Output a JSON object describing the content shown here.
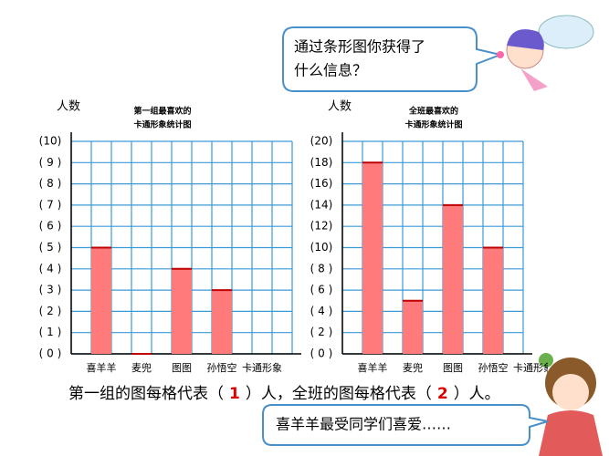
{
  "bubble_top": [
    "通过条形图你获得了",
    "什么信息？"
  ],
  "chart_data": [
    {
      "type": "bar",
      "ylabel": "人数",
      "title": [
        "第一组最喜欢的",
        "卡通形象统计图"
      ],
      "xlabel": "卡通形象",
      "categories": [
        "喜羊羊",
        "麦兜",
        "图图",
        "孙悟空"
      ],
      "values": [
        5,
        0,
        4,
        3
      ],
      "color": "#ff7b7b",
      "ylim": [
        0,
        10
      ],
      "yticks": [
        {
          "value": 0,
          "label": "( 0 )"
        },
        {
          "value": 1,
          "label": "( 1 )"
        },
        {
          "value": 2,
          "label": "( 2 )"
        },
        {
          "value": 3,
          "label": "( 3 )"
        },
        {
          "value": 4,
          "label": "( 4 )"
        },
        {
          "value": 5,
          "label": "( 5 )"
        },
        {
          "value": 6,
          "label": "( 6 )"
        },
        {
          "value": 7,
          "label": "( 7 )"
        },
        {
          "value": 8,
          "label": "( 8 )"
        },
        {
          "value": 9,
          "label": "( 9 )"
        },
        {
          "value": 10,
          "label": "(10)"
        }
      ],
      "grid": true
    },
    {
      "type": "bar",
      "ylabel": "人数",
      "title": [
        "全班最喜欢的",
        "卡通形象统计图"
      ],
      "xlabel": "卡通形象",
      "categories": [
        "喜羊羊",
        "麦兜",
        "图图",
        "孙悟空"
      ],
      "values": [
        18,
        5,
        14,
        10
      ],
      "color": "#ff7b7b",
      "ylim": [
        0,
        20
      ],
      "yticks": [
        {
          "value": 0,
          "label": "( 0 )"
        },
        {
          "value": 2,
          "label": "( 2 )"
        },
        {
          "value": 4,
          "label": "( 4 )"
        },
        {
          "value": 6,
          "label": "( 6 )"
        },
        {
          "value": 8,
          "label": "( 8 )"
        },
        {
          "value": 10,
          "label": "(10)"
        },
        {
          "value": 12,
          "label": "(12)"
        },
        {
          "value": 14,
          "label": "(14)"
        },
        {
          "value": 16,
          "label": "(16)"
        },
        {
          "value": 18,
          "label": "(18)"
        },
        {
          "value": 20,
          "label": "(20)"
        }
      ],
      "grid": true
    }
  ],
  "sentence": {
    "part1": "第一组的图每格代表（",
    "group_per_cell": 1,
    "part2": "）人，全班的图每格代表（",
    "class_per_cell": 2,
    "part3": "）人。"
  },
  "bubble_bottom": "喜羊羊最受同学们喜爱……"
}
